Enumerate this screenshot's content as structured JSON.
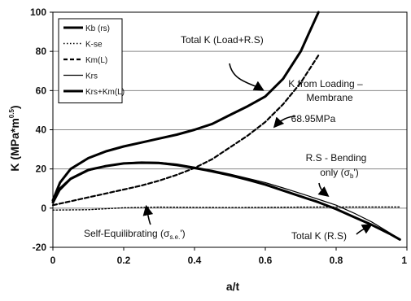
{
  "chart_data": {
    "type": "line",
    "xlabel": "a/t",
    "ylabel": "K (MPa*m^0.5)",
    "ylabel_parts": {
      "main": "K (MPa*m",
      "exp": "0.5",
      "close": ")"
    },
    "xlim": [
      0,
      1
    ],
    "ylim": [
      -20,
      100
    ],
    "x_ticks": [
      0,
      0.2,
      0.4,
      0.6,
      0.8,
      1
    ],
    "x_tick_labels": [
      "0",
      "0.2",
      "0.4",
      "0.6",
      "0.8",
      "1"
    ],
    "y_ticks": [
      -20,
      0,
      20,
      40,
      60,
      80,
      100
    ],
    "y_tick_labels": [
      "-20",
      "0",
      "20",
      "40",
      "60",
      "80",
      "100"
    ],
    "grid": "horizontal",
    "legend_position": "top-left",
    "series": [
      {
        "name": "Kb (rs)",
        "style": "solid-thick",
        "x": [
          0,
          0.02,
          0.05,
          0.1,
          0.15,
          0.2,
          0.25,
          0.3,
          0.35,
          0.4,
          0.45,
          0.5,
          0.55,
          0.6,
          0.65,
          0.7,
          0.75,
          0.8,
          0.85,
          0.9,
          0.95,
          0.98
        ],
        "y": [
          3,
          10,
          15,
          19.5,
          21.5,
          22.8,
          23.2,
          23,
          22,
          20.5,
          18.8,
          16.8,
          14.5,
          12,
          9,
          6,
          3,
          -0.5,
          -4.5,
          -8.5,
          -13,
          -16
        ]
      },
      {
        "name": "K-se",
        "style": "dotted",
        "x": [
          0,
          0.1,
          0.2,
          0.3,
          0.4,
          0.5,
          0.6,
          0.7,
          0.8,
          0.9,
          0.98
        ],
        "y": [
          -1,
          -0.8,
          0.2,
          0.5,
          0.4,
          0.3,
          0.4,
          0.5,
          0.6,
          0.6,
          0.6
        ]
      },
      {
        "name": "Km(L)",
        "style": "dashed",
        "x": [
          0,
          0.05,
          0.1,
          0.15,
          0.2,
          0.25,
          0.3,
          0.35,
          0.4,
          0.45,
          0.5,
          0.55,
          0.6,
          0.65,
          0.7,
          0.75
        ],
        "y": [
          1.5,
          3.5,
          5.5,
          7.5,
          9.5,
          11.5,
          14,
          17,
          20.5,
          25,
          31,
          37,
          44,
          53,
          64,
          78
        ]
      },
      {
        "name": "Krs",
        "style": "solid-thin",
        "x": [
          0,
          0.02,
          0.05,
          0.1,
          0.15,
          0.2,
          0.25,
          0.3,
          0.35,
          0.4,
          0.45,
          0.5,
          0.55,
          0.6,
          0.65,
          0.7,
          0.75,
          0.8,
          0.85,
          0.9,
          0.95,
          0.98
        ],
        "y": [
          2,
          9,
          14.5,
          19,
          21.5,
          23,
          23.6,
          23.4,
          22.5,
          21,
          19.3,
          17.4,
          15.2,
          13,
          10.3,
          7.5,
          4.5,
          1.5,
          -2.5,
          -7,
          -12.5,
          -16
        ]
      },
      {
        "name": "Krs+Km(L)",
        "style": "solid-thick",
        "x": [
          0,
          0.02,
          0.05,
          0.1,
          0.15,
          0.2,
          0.25,
          0.3,
          0.35,
          0.4,
          0.45,
          0.5,
          0.55,
          0.6,
          0.65,
          0.7,
          0.72,
          0.75
        ],
        "y": [
          4,
          13,
          20,
          25.5,
          29,
          31.5,
          33.5,
          35.5,
          37.5,
          40,
          43,
          47.5,
          52,
          57,
          66,
          80,
          88,
          100
        ]
      }
    ],
    "annotations": [
      {
        "id": "total-k-load-rs",
        "lines": [
          "Total K (Load+R.S)"
        ]
      },
      {
        "id": "k-from-loading",
        "lines": [
          "K from Loading –",
          "Membrane",
          "68.95MPa"
        ]
      },
      {
        "id": "rs-bending",
        "lines": [
          "R.S - Bending",
          "only (σ_b')"
        ]
      },
      {
        "id": "self-equilibrating",
        "lines": [
          "Self-Equilibrating (σ_s.e.')"
        ]
      },
      {
        "id": "total-k-rs",
        "lines": [
          "Total K (R.S)"
        ]
      }
    ],
    "annotation_text": {
      "total_k_load_rs": "Total K (Load+R.S)",
      "k_from_loading_line1": "K from Loading –",
      "k_from_loading_line2": "Membrane",
      "k_from_loading_line3": "68.95MPa",
      "rs_bending_line1": "R.S - Bending",
      "rs_bending_line2_prefix": "only (σ",
      "rs_bending_line2_sub": "b",
      "rs_bending_line2_suffix": "')",
      "self_eq_prefix": "Self-Equilibrating (σ",
      "self_eq_sub": "s.e.",
      "self_eq_suffix": "')",
      "total_k_rs": "Total K (R.S)"
    }
  }
}
